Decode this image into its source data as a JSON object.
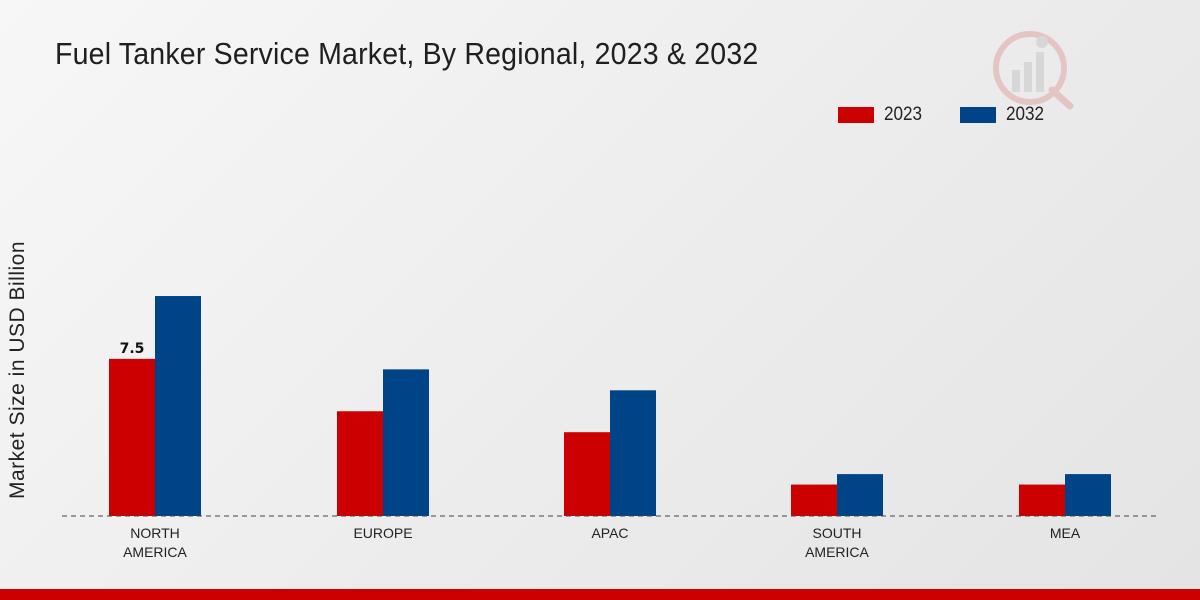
{
  "chart_data": {
    "type": "bar",
    "title": "Fuel Tanker Service Market, By Regional, 2023 & 2032",
    "xlabel": "",
    "ylabel": "Market Size in USD Billion",
    "categories": [
      [
        "NORTH",
        "AMERICA"
      ],
      [
        "EUROPE"
      ],
      [
        "APAC"
      ],
      [
        "SOUTH",
        "AMERICA"
      ],
      [
        "MEA"
      ]
    ],
    "series": [
      {
        "name": "2023",
        "color": "#cc0000",
        "values": [
          7.5,
          5.0,
          4.0,
          1.5,
          1.5
        ]
      },
      {
        "name": "2032",
        "color": "#004488",
        "values": [
          10.5,
          7.0,
          6.0,
          2.0,
          2.0
        ]
      }
    ],
    "data_labels": [
      {
        "series": 0,
        "index": 0,
        "text": "7.5"
      }
    ],
    "ylim": [
      0,
      20
    ],
    "legend_position": "top-right",
    "grid": false
  }
}
